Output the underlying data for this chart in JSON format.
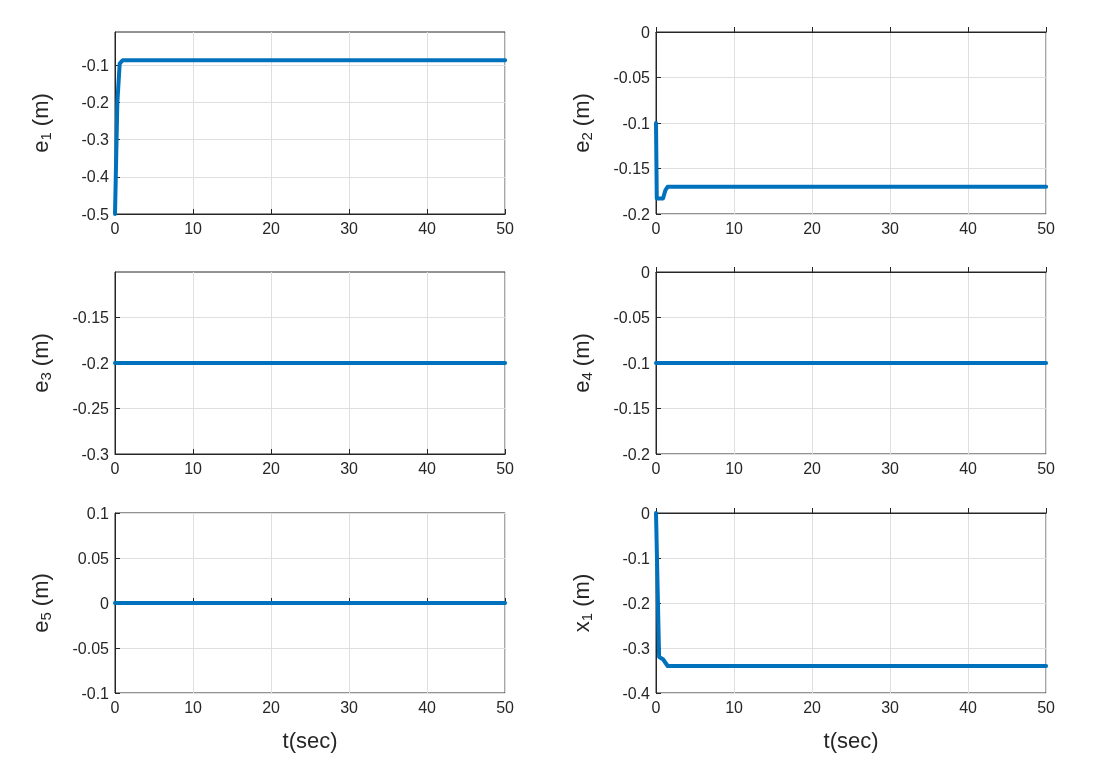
{
  "chart_data": [
    {
      "type": "line",
      "ylabel": "e$_{1}$ (m)",
      "x": [
        0,
        0.3,
        0.6,
        1,
        50
      ],
      "series": [
        {
          "color": "#0072bd",
          "values": [
            -0.5,
            -0.2,
            -0.095,
            -0.086,
            -0.086
          ]
        }
      ],
      "xlim": [
        0,
        50
      ],
      "xticks": [
        0,
        10,
        20,
        30,
        40,
        50
      ],
      "ylim": [
        -0.5,
        -0.01
      ],
      "yticks": [
        -0.5,
        -0.4,
        -0.3,
        -0.2,
        -0.1
      ],
      "grid": true,
      "marker": "none",
      "line_style": "solid",
      "tick_labels": "xy"
    },
    {
      "type": "line",
      "ylabel": "e$_{2}$ (m)",
      "x": [
        0,
        0.1,
        0.9,
        1.2,
        1.5,
        50
      ],
      "series": [
        {
          "color": "#0072bd",
          "values": [
            -0.1,
            -0.183,
            -0.183,
            -0.174,
            -0.17,
            -0.17
          ]
        }
      ],
      "xlim": [
        0,
        50
      ],
      "xticks": [
        0,
        10,
        20,
        30,
        40,
        50
      ],
      "ylim": [
        -0.2,
        0
      ],
      "yticks": [
        -0.2,
        -0.15,
        -0.1,
        -0.05,
        0
      ],
      "grid": true,
      "marker": "none",
      "line_style": "solid"
    },
    {
      "type": "line",
      "ylabel": "e$_{3}$ (m)",
      "x": [
        0,
        50
      ],
      "series": [
        {
          "color": "#0072bd",
          "values": [
            -0.2,
            -0.2
          ]
        }
      ],
      "xlim": [
        0,
        50
      ],
      "xticks": [
        0,
        10,
        20,
        30,
        40,
        50
      ],
      "ylim": [
        -0.3,
        -0.1
      ],
      "yticks": [
        -0.3,
        -0.25,
        -0.2,
        -0.15
      ],
      "grid": true,
      "marker": "none",
      "line_style": "solid"
    },
    {
      "type": "line",
      "ylabel": "e$_{4}$ (m)",
      "x": [
        0,
        50
      ],
      "series": [
        {
          "color": "#0072bd",
          "values": [
            -0.1,
            -0.1
          ]
        }
      ],
      "xlim": [
        0,
        50
      ],
      "xticks": [
        0,
        10,
        20,
        30,
        40,
        50
      ],
      "ylim": [
        -0.2,
        0
      ],
      "yticks": [
        -0.2,
        -0.15,
        -0.1,
        -0.05,
        0
      ],
      "grid": true,
      "marker": "none",
      "line_style": "solid"
    },
    {
      "type": "line",
      "ylabel": "e$_{5}$ (m)",
      "xlabel": "t(sec)",
      "x": [
        0,
        50
      ],
      "series": [
        {
          "color": "#0072bd",
          "values": [
            0,
            0
          ]
        }
      ],
      "xlim": [
        0,
        50
      ],
      "xticks": [
        0,
        10,
        20,
        30,
        40,
        50
      ],
      "ylim": [
        -0.1,
        0.1
      ],
      "yticks": [
        -0.1,
        -0.05,
        0,
        0.05,
        0.1
      ],
      "grid": true,
      "marker": "none",
      "line_style": "solid"
    },
    {
      "type": "line",
      "ylabel": "x$_{1}$ (m)",
      "xlabel": "t(sec)",
      "x": [
        0,
        0.4,
        0.9,
        1.5,
        50
      ],
      "series": [
        {
          "color": "#0072bd",
          "values": [
            0,
            -0.32,
            -0.325,
            -0.34,
            -0.34
          ]
        }
      ],
      "xlim": [
        0,
        50
      ],
      "xticks": [
        0,
        10,
        20,
        30,
        40,
        50
      ],
      "ylim": [
        -0.4,
        0
      ],
      "yticks": [
        -0.4,
        -0.3,
        -0.2,
        -0.1,
        0
      ],
      "grid": true,
      "marker": "none",
      "line_style": "solid"
    }
  ]
}
